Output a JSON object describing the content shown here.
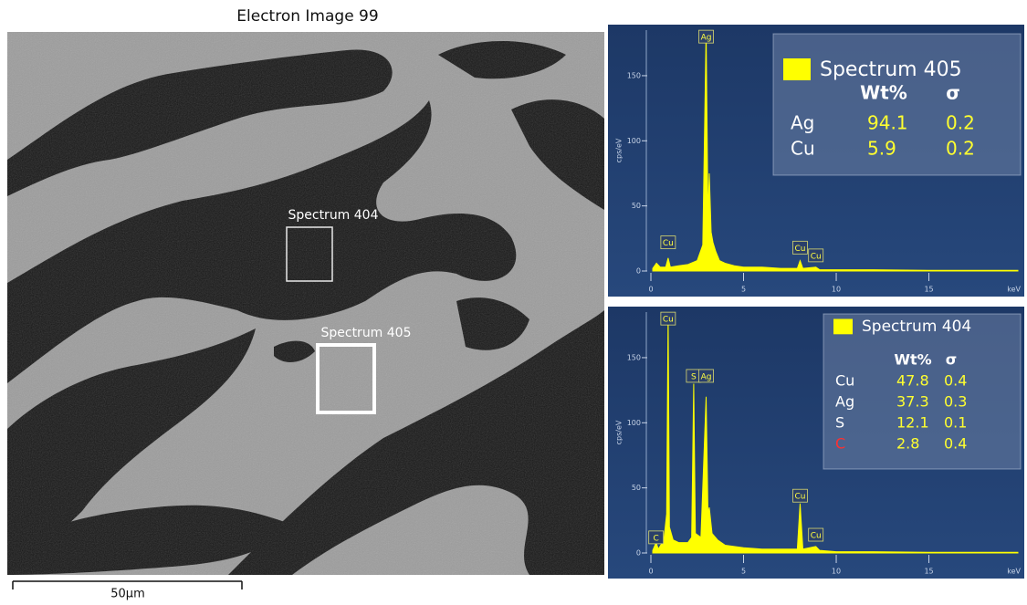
{
  "image": {
    "title": "Electron Image 99",
    "scale_bar": "50µm",
    "regions": [
      "Spectrum 404",
      "Spectrum 405"
    ]
  },
  "chart_data": [
    {
      "type": "area",
      "y_label": "cps/eV",
      "x_label": "keV",
      "x": [
        0.1,
        0.2,
        0.3,
        0.5,
        0.8,
        0.93,
        1.05,
        1.5,
        2.0,
        2.5,
        2.8,
        2.98,
        3.08,
        3.15,
        3.25,
        3.35,
        3.5,
        3.7,
        4.0,
        4.5,
        5.0,
        6.0,
        7.0,
        7.9,
        8.05,
        8.2,
        8.9,
        9.1,
        10,
        12,
        15,
        19.8
      ],
      "series": [
        {
          "name": "Spectrum 405",
          "color": "#ffff00",
          "values": [
            2,
            4,
            6,
            3,
            3,
            10,
            3,
            4,
            5,
            8,
            20,
            185,
            40,
            75,
            30,
            22,
            15,
            8,
            6,
            4,
            3,
            3,
            2,
            2,
            8,
            2,
            3,
            1,
            1,
            1,
            0.5,
            0.5
          ]
        }
      ],
      "xlim": [
        0,
        19.8
      ],
      "xticks": [
        0,
        5,
        10,
        15
      ],
      "ylim": [
        0,
        185
      ],
      "yticks": [
        0,
        50,
        100,
        150
      ],
      "peak_labels": [
        {
          "text": "Ag",
          "x": 2.98,
          "y": 180
        },
        {
          "text": "Cu",
          "x": 0.93,
          "y": 22
        },
        {
          "text": "Cu",
          "x": 8.05,
          "y": 18
        },
        {
          "text": "Cu",
          "x": 8.9,
          "y": 12
        }
      ],
      "table": {
        "headers": [
          "Wt%",
          "σ"
        ],
        "rows": [
          {
            "element": "Ag",
            "color": "#ffffff",
            "values": [
              94.1,
              0.2
            ]
          },
          {
            "element": "Cu",
            "color": "#ffffff",
            "values": [
              5.9,
              0.2
            ]
          }
        ]
      }
    },
    {
      "type": "area",
      "y_label": "cps/eV",
      "x_label": "keV",
      "x": [
        0.1,
        0.28,
        0.4,
        0.7,
        0.85,
        0.93,
        1.0,
        1.2,
        1.5,
        2.0,
        2.2,
        2.31,
        2.4,
        2.7,
        2.98,
        3.08,
        3.15,
        3.3,
        3.6,
        4.0,
        5.0,
        6.0,
        7.0,
        7.9,
        8.05,
        8.2,
        8.9,
        9.1,
        10,
        12,
        15,
        19.8
      ],
      "series": [
        {
          "name": "Spectrum 404",
          "color": "#ffff00",
          "values": [
            2,
            8,
            3,
            10,
            30,
            185,
            20,
            10,
            8,
            8,
            12,
            130,
            15,
            12,
            120,
            30,
            35,
            15,
            10,
            6,
            4,
            3,
            3,
            3,
            38,
            3,
            5,
            2,
            1,
            1,
            0.5,
            0.5
          ]
        }
      ],
      "xlim": [
        0,
        19.8
      ],
      "xticks": [
        0,
        5,
        10,
        15
      ],
      "ylim": [
        0,
        185
      ],
      "yticks": [
        0,
        50,
        100,
        150
      ],
      "peak_labels": [
        {
          "text": "Cu",
          "x": 0.93,
          "y": 180
        },
        {
          "text": "C",
          "x": 0.28,
          "y": 12
        },
        {
          "text": "S",
          "x": 2.31,
          "y": 136
        },
        {
          "text": "Ag",
          "x": 2.98,
          "y": 136
        },
        {
          "text": "Cu",
          "x": 8.05,
          "y": 44
        },
        {
          "text": "Cu",
          "x": 8.9,
          "y": 14
        }
      ],
      "table": {
        "headers": [
          "Wt%",
          "σ"
        ],
        "rows": [
          {
            "element": "Cu",
            "color": "#ffffff",
            "values": [
              47.8,
              0.4
            ]
          },
          {
            "element": "Ag",
            "color": "#ffffff",
            "values": [
              37.3,
              0.3
            ]
          },
          {
            "element": "S",
            "color": "#ffffff",
            "values": [
              12.1,
              0.1
            ]
          },
          {
            "element": "C",
            "color": "#ff3030",
            "values": [
              2.8,
              0.4
            ]
          }
        ]
      }
    }
  ]
}
